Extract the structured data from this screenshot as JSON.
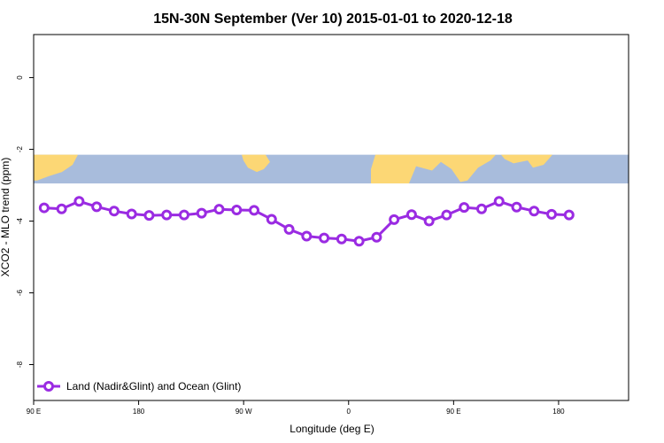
{
  "chart_data": {
    "type": "line",
    "title": "15N-30N September (Ver 10)   2015-01-01 to 2020-12-18",
    "xlabel": "Longitude (deg E)",
    "ylabel": "XCO2 - MLO trend (ppm)",
    "xlim": [
      90,
      600
    ],
    "ylim": [
      -9.0,
      1.2
    ],
    "xticks": [
      {
        "value": 90,
        "label": "90 E"
      },
      {
        "value": 180,
        "label": "180"
      },
      {
        "value": 270,
        "label": "90 W"
      },
      {
        "value": 360,
        "label": "0"
      },
      {
        "value": 450,
        "label": "90 E"
      },
      {
        "value": 540,
        "label": "180"
      }
    ],
    "yticks": [
      {
        "value": 0,
        "label": "0"
      },
      {
        "value": -2,
        "label": "-2"
      },
      {
        "value": -4,
        "label": "-4"
      },
      {
        "value": -6,
        "label": "-6"
      },
      {
        "value": -8,
        "label": "-8"
      }
    ],
    "map_band": {
      "ymin": -2.95,
      "ymax": -2.15,
      "land_color": "#fcd775",
      "ocean_color": "#a8bcdc"
    },
    "legend_position": "bottom-left",
    "grid": false,
    "series": [
      {
        "name": "Land (Nadir&Glint) and Ocean (Glint)",
        "color": "#9a2be2",
        "x": [
          99,
          114,
          129,
          144,
          159,
          174,
          189,
          204,
          219,
          234,
          249,
          264,
          279,
          294,
          309,
          324,
          339,
          354,
          369,
          384,
          399,
          414,
          429,
          444,
          459,
          474,
          489,
          504,
          519,
          534,
          549
        ],
        "y": [
          -3.63,
          -3.66,
          -3.45,
          -3.6,
          -3.72,
          -3.8,
          -3.84,
          -3.83,
          -3.83,
          -3.78,
          -3.67,
          -3.69,
          -3.7,
          -3.95,
          -4.23,
          -4.42,
          -4.47,
          -4.5,
          -4.56,
          -4.45,
          -3.96,
          -3.82,
          -4.0,
          -3.83,
          -3.62,
          -3.66,
          -3.45,
          -3.61,
          -3.72,
          -3.81,
          -3.83
        ]
      }
    ]
  }
}
